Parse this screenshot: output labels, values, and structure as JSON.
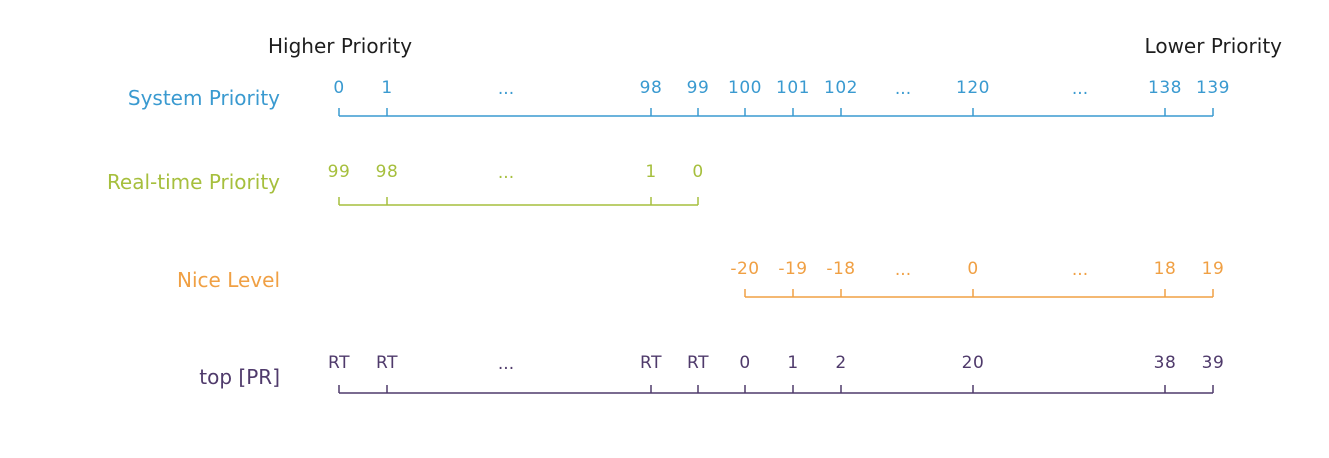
{
  "header": {
    "left": "Higher Priority",
    "right": "Lower Priority"
  },
  "rows": [
    {
      "id": "system",
      "label": "System Priority",
      "color": "#3a9ad0",
      "ticks": [
        "0",
        "1",
        "98",
        "99",
        "100",
        "101",
        "102",
        "120",
        "138",
        "139"
      ],
      "ellipses": [
        "...",
        "...",
        "..."
      ]
    },
    {
      "id": "realtime",
      "label": "Real-time Priority",
      "color": "#a6bf3d",
      "ticks": [
        "99",
        "98",
        "1",
        "0"
      ],
      "ellipses": [
        "..."
      ]
    },
    {
      "id": "nice",
      "label": "Nice Level",
      "color": "#f0a044",
      "ticks": [
        "-20",
        "-19",
        "-18",
        "0",
        "18",
        "19"
      ],
      "ellipses": [
        "...",
        "..."
      ]
    },
    {
      "id": "top",
      "label": "top [PR]",
      "color": "#4f3a6b",
      "ticks": [
        "RT",
        "RT",
        "RT",
        "RT",
        "0",
        "1",
        "2",
        "20",
        "38",
        "39"
      ],
      "ellipses": [
        "..."
      ]
    }
  ]
}
